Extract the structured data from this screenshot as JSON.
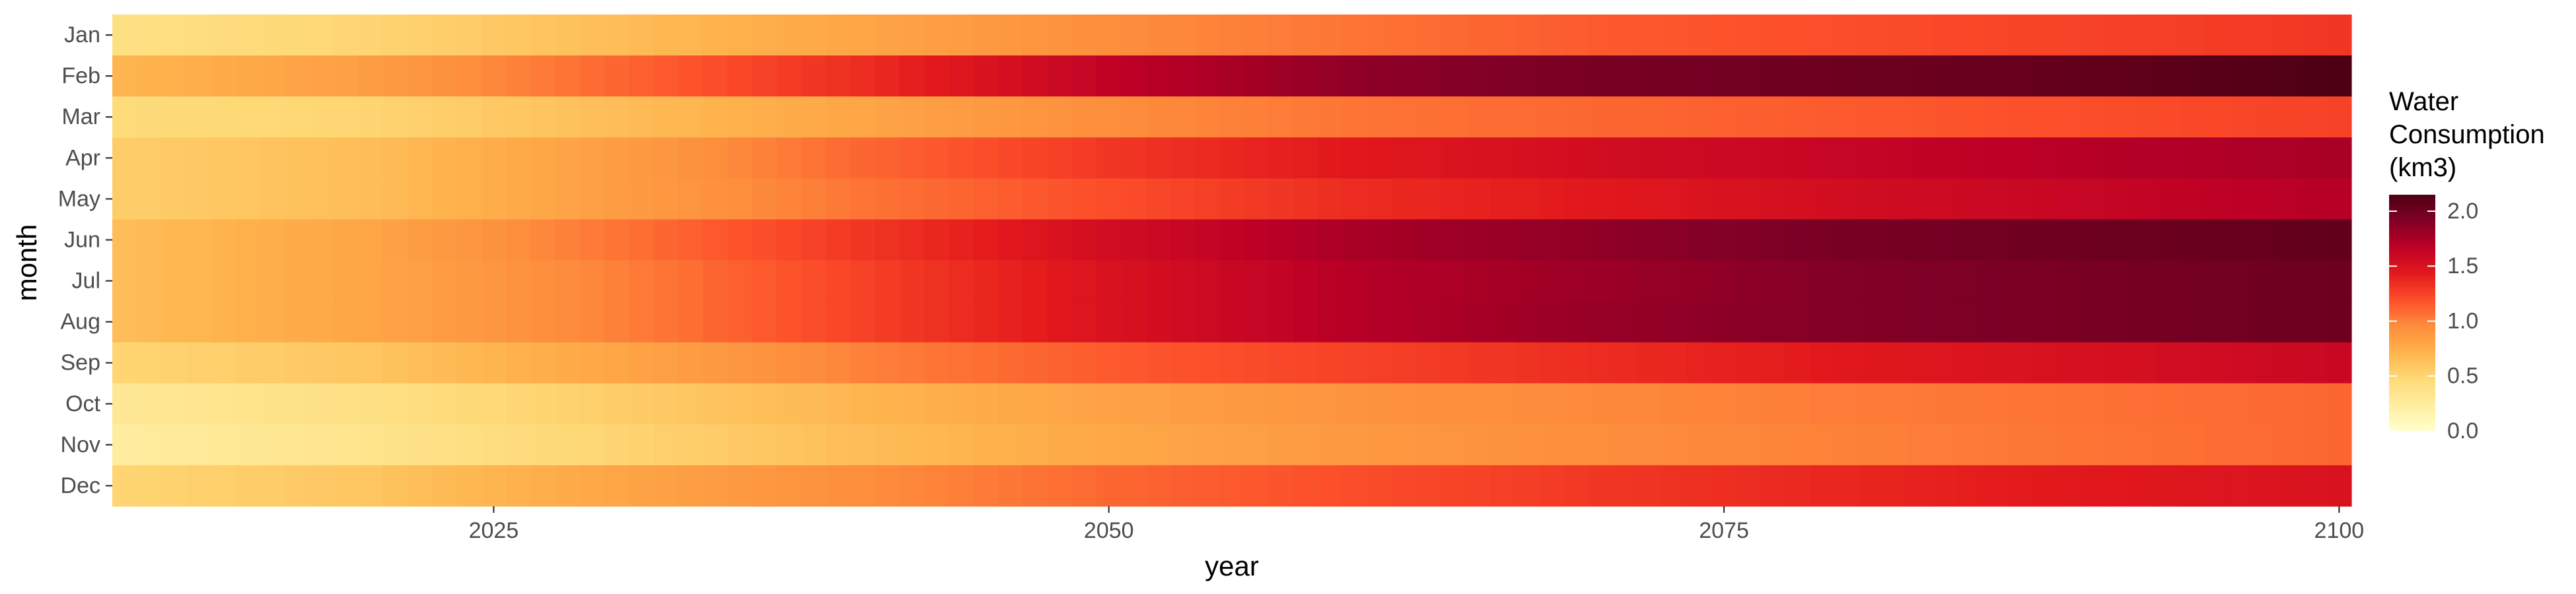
{
  "chart_data": {
    "type": "heatmap",
    "title": "",
    "xlabel": "year",
    "ylabel": "month",
    "x_range": [
      2010,
      2100
    ],
    "x_ticks": [
      2025,
      2050,
      2075,
      2100
    ],
    "months": [
      "Jan",
      "Feb",
      "Mar",
      "Apr",
      "May",
      "Jun",
      "Jul",
      "Aug",
      "Sep",
      "Oct",
      "Nov",
      "Dec"
    ],
    "anchor_years": [
      2010,
      2020,
      2030,
      2040,
      2050,
      2060,
      2070,
      2080,
      2090,
      2100
    ],
    "series": [
      {
        "name": "Jan",
        "values": [
          0.4,
          0.5,
          0.65,
          0.8,
          0.95,
          1.05,
          1.15,
          1.2,
          1.25,
          1.3
        ]
      },
      {
        "name": "Feb",
        "values": [
          0.7,
          0.85,
          1.1,
          1.35,
          1.65,
          1.85,
          1.95,
          2.0,
          2.05,
          2.15
        ]
      },
      {
        "name": "Mar",
        "values": [
          0.45,
          0.5,
          0.65,
          0.8,
          0.95,
          1.05,
          1.1,
          1.15,
          1.2,
          1.25
        ]
      },
      {
        "name": "Apr",
        "values": [
          0.55,
          0.65,
          0.85,
          1.1,
          1.3,
          1.45,
          1.55,
          1.62,
          1.7,
          1.75
        ]
      },
      {
        "name": "May",
        "values": [
          0.55,
          0.65,
          0.85,
          1.05,
          1.2,
          1.35,
          1.45,
          1.55,
          1.62,
          1.7
        ]
      },
      {
        "name": "Jun",
        "values": [
          0.65,
          0.8,
          1.05,
          1.3,
          1.55,
          1.75,
          1.85,
          1.95,
          2.0,
          2.05
        ]
      },
      {
        "name": "Jul",
        "values": [
          0.65,
          0.8,
          1.0,
          1.25,
          1.5,
          1.7,
          1.8,
          1.9,
          1.95,
          2.0
        ]
      },
      {
        "name": "Aug",
        "values": [
          0.65,
          0.8,
          1.0,
          1.25,
          1.5,
          1.7,
          1.82,
          1.9,
          1.95,
          2.0
        ]
      },
      {
        "name": "Sep",
        "values": [
          0.5,
          0.6,
          0.8,
          1.0,
          1.15,
          1.25,
          1.35,
          1.45,
          1.52,
          1.6
        ]
      },
      {
        "name": "Oct",
        "values": [
          0.3,
          0.4,
          0.55,
          0.7,
          0.82,
          0.92,
          0.97,
          1.02,
          1.06,
          1.1
        ]
      },
      {
        "name": "Nov",
        "values": [
          0.25,
          0.35,
          0.5,
          0.65,
          0.78,
          0.88,
          0.95,
          1.0,
          1.05,
          1.1
        ]
      },
      {
        "name": "Dec",
        "values": [
          0.5,
          0.6,
          0.8,
          0.95,
          1.1,
          1.2,
          1.3,
          1.38,
          1.45,
          1.5
        ]
      }
    ],
    "legend": {
      "title_lines": [
        "Water",
        "Consumption",
        "(km3)"
      ],
      "ticks": [
        "0.0",
        "0.5",
        "1.0",
        "1.5",
        "2.0"
      ],
      "range": [
        0,
        2.15
      ],
      "placement": "right"
    },
    "color_scale": [
      "#ffffcc",
      "#ffeda0",
      "#fed976",
      "#feb24c",
      "#fd8d3c",
      "#fc4e2a",
      "#e31a1c",
      "#bd0026",
      "#800026",
      "#4d0014"
    ],
    "grid": false
  }
}
